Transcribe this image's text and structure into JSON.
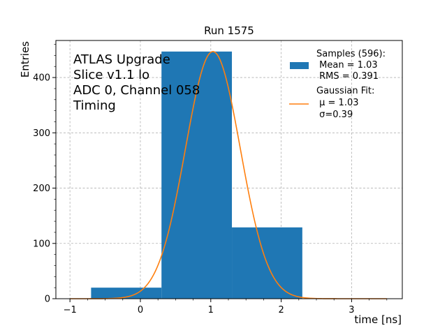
{
  "chart_data": {
    "type": "bar",
    "title": "Run 1575",
    "xlabel": "time [ns]",
    "ylabel": "Entries",
    "xlim": [
      -1.2,
      3.72
    ],
    "ylim": [
      0,
      467
    ],
    "grid": true,
    "x_ticks": [
      -1,
      0,
      1,
      2,
      3
    ],
    "x_tick_labels": [
      "−1",
      "0",
      "1",
      "2",
      "3"
    ],
    "y_ticks": [
      0,
      100,
      200,
      300,
      400
    ],
    "y_tick_labels": [
      "0",
      "100",
      "200",
      "300",
      "400"
    ],
    "bins": [
      {
        "x0": -0.7,
        "x1": 0.3,
        "value": 20
      },
      {
        "x0": 0.3,
        "x1": 1.3,
        "value": 447
      },
      {
        "x0": 1.3,
        "x1": 2.3,
        "value": 129
      }
    ],
    "fit": {
      "mu": 1.03,
      "sigma": 0.39,
      "amplitude": 447,
      "x_range": [
        -1.0,
        3.5
      ]
    },
    "colors": {
      "bars": "#1f77b4",
      "fit": "#ff7f0e",
      "grid": "#b0b0b0"
    },
    "annotation_lines": [
      "ATLAS Upgrade",
      "Slice v1.1 lo",
      "ADC 0, Channel 058",
      "Timing"
    ],
    "legend": {
      "placement": "top-right",
      "entries": [
        {
          "kind": "patch",
          "lines": [
            "Samples (596):",
            " Mean = 1.03",
            " RMS = 0.391"
          ]
        },
        {
          "kind": "line",
          "lines": [
            "Gaussian Fit:",
            " μ = 1.03",
            " σ=0.39"
          ]
        }
      ]
    }
  }
}
